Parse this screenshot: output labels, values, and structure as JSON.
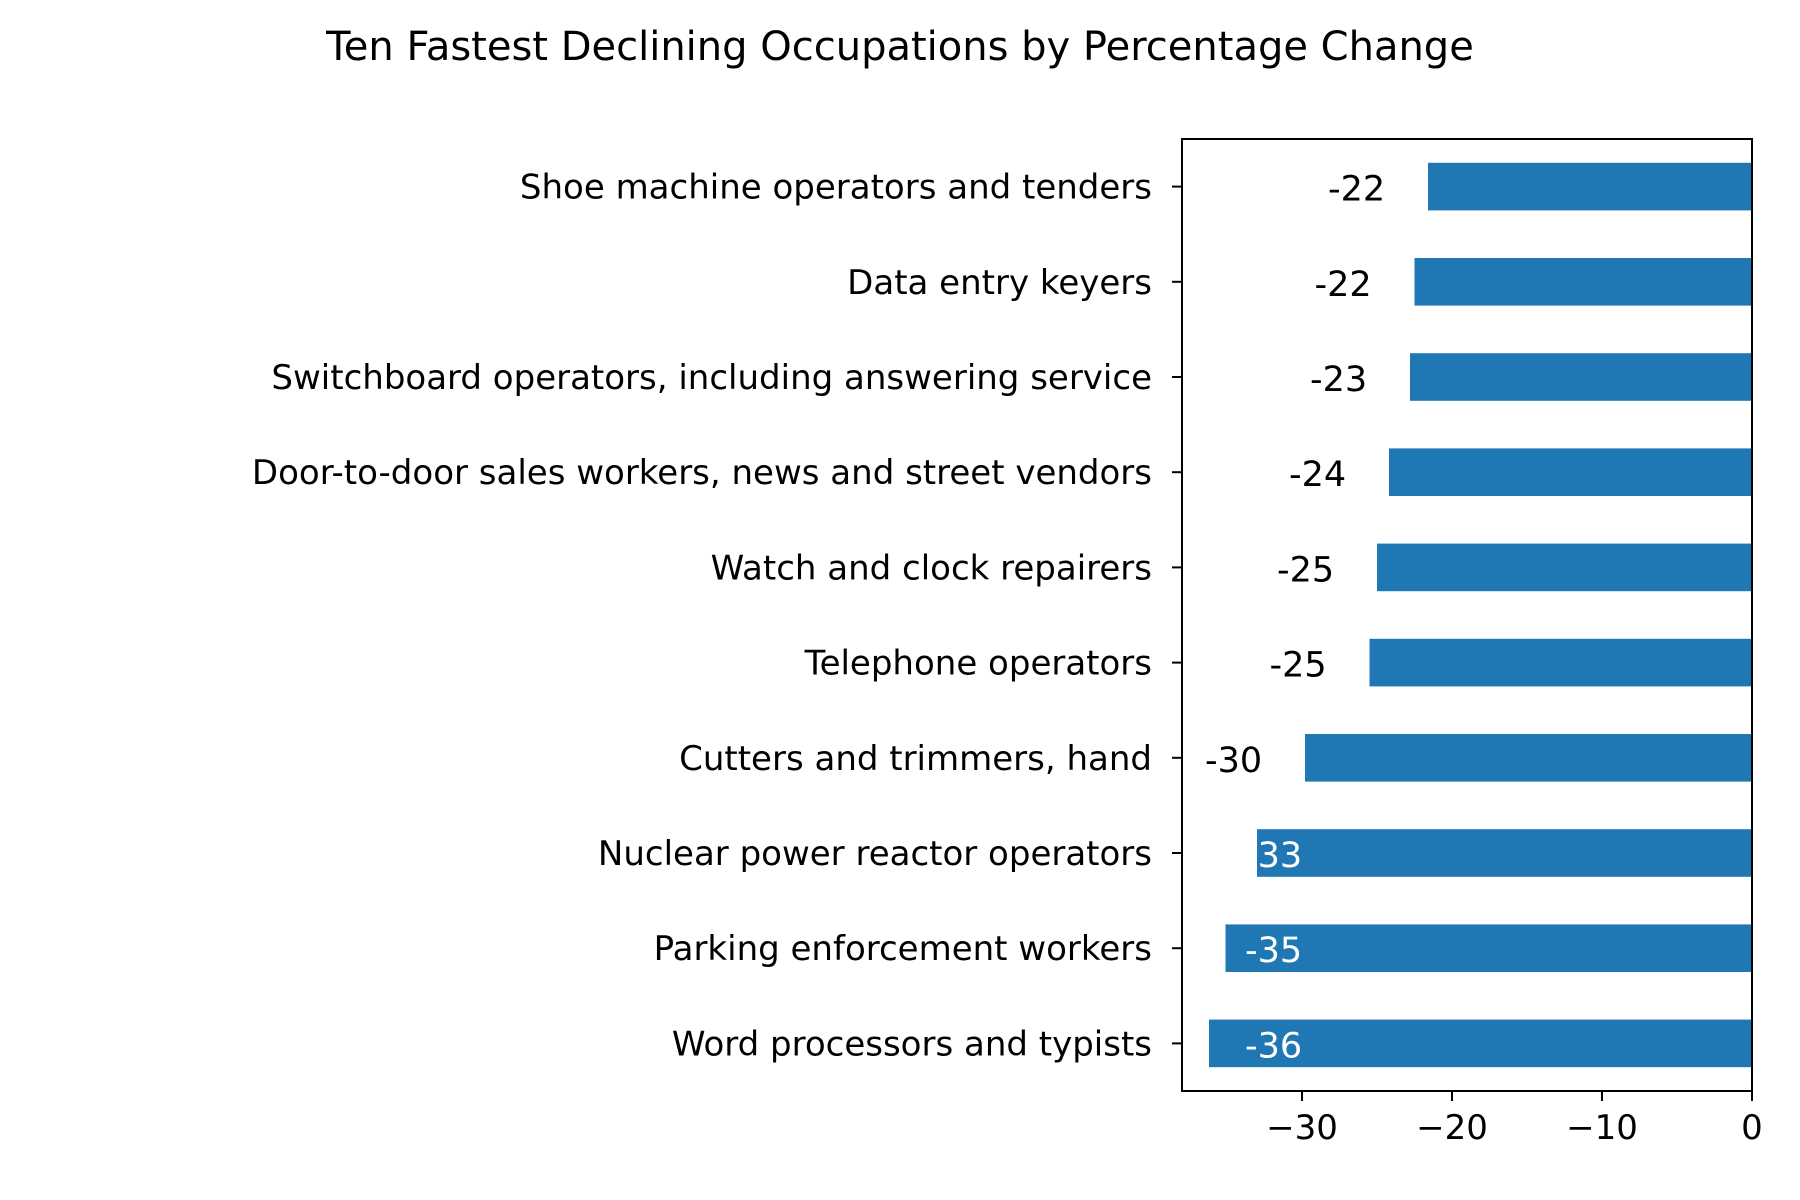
{
  "chart_data": {
    "type": "bar",
    "orientation": "horizontal",
    "title": "Ten Fastest Declining Occupations by Percentage Change",
    "xlabel": "",
    "ylabel": "",
    "categories": [
      "Shoe machine operators and tenders",
      "Data entry keyers",
      "Switchboard operators, including answering service",
      "Door-to-door sales workers, news and street vendors",
      "Watch and clock repairers",
      "Telephone operators",
      "Cutters and trimmers, hand",
      "Nuclear power reactor operators",
      "Parking enforcement workers",
      "Word processors and typists"
    ],
    "values": [
      -21.6,
      -22.5,
      -22.8,
      -24.2,
      -25.0,
      -25.5,
      -29.8,
      -33.0,
      -35.1,
      -36.2
    ],
    "data_labels": [
      "-22",
      "-22",
      "-23",
      "-24",
      "-25",
      "-25",
      "-30",
      "-33",
      "-35",
      "-36"
    ],
    "xlim": [
      -38,
      0
    ],
    "xticks": [
      -30,
      -20,
      -10,
      0
    ],
    "xtick_labels": [
      "−30",
      "−20",
      "−10",
      "0"
    ],
    "grid": false,
    "legend": "none",
    "colors": {
      "bar": "#1f77b4",
      "label_inside": "#ffffff",
      "label_outside": "#000000"
    }
  }
}
